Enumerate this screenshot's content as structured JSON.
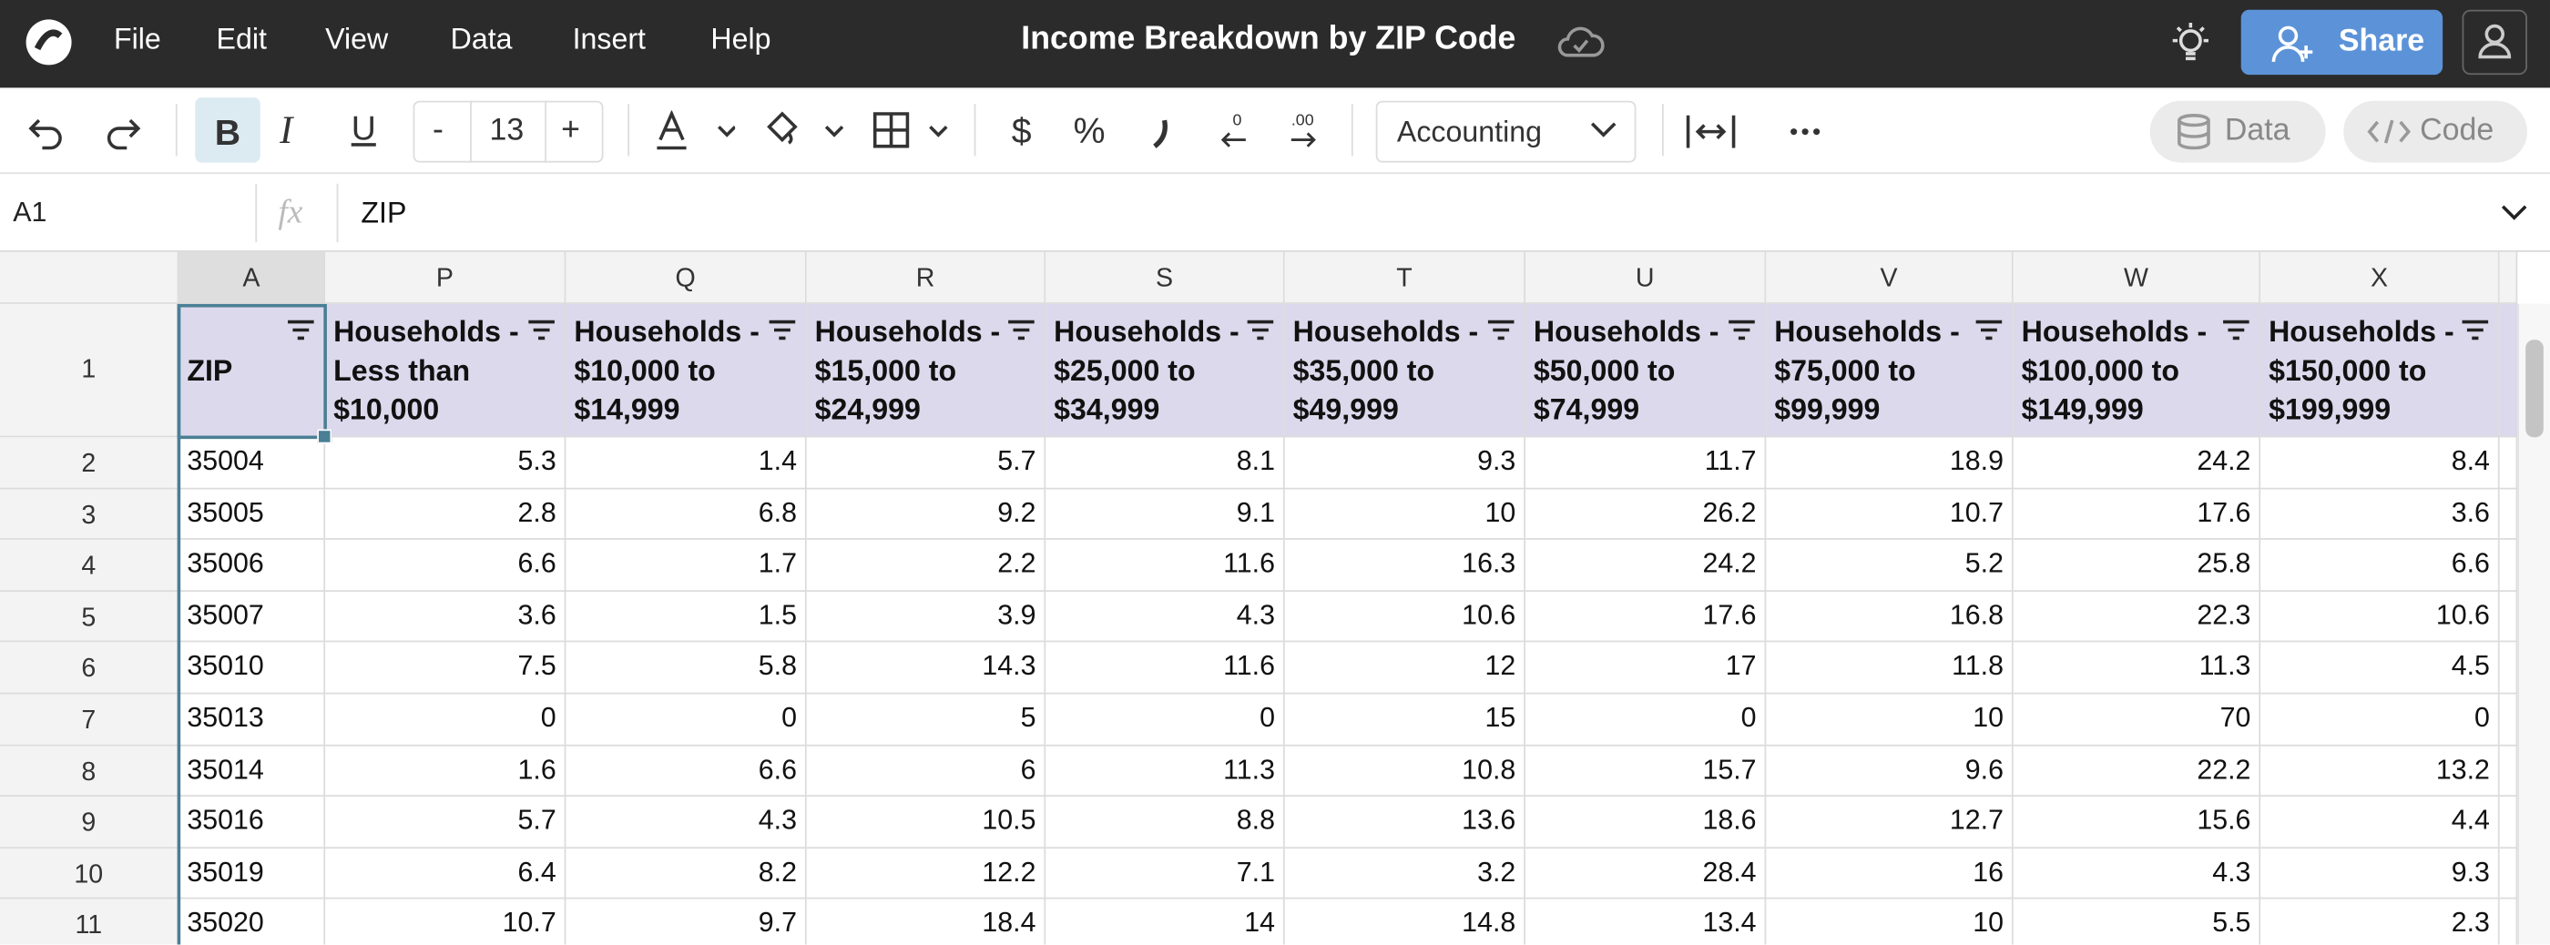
{
  "app": {
    "menu": [
      "File",
      "Edit",
      "View",
      "Data",
      "Insert",
      "Help"
    ],
    "title": "Income Breakdown by ZIP Code",
    "share": "Share"
  },
  "toolbar": {
    "bold": "B",
    "italic": "I",
    "underline": "U",
    "decrease": "-",
    "font_size": "13",
    "increase": "+",
    "currency": "$",
    "percent": "%",
    "number_format": "Accounting",
    "data_button": "Data",
    "code_button": "Code"
  },
  "formula_bar": {
    "cell_ref": "A1",
    "fx": "fx",
    "content": "ZIP"
  },
  "sheet": {
    "columns": [
      "A",
      "P",
      "Q",
      "R",
      "S",
      "T",
      "U",
      "V",
      "W",
      "X"
    ],
    "row_numbers": [
      "1",
      "2",
      "3",
      "4",
      "5",
      "6",
      "7",
      "8",
      "9",
      "10",
      "11"
    ],
    "header": [
      "ZIP",
      "Households - Less than $10,000",
      "Households - $10,000 to $14,999",
      "Households - $15,000 to $24,999",
      "Households - $25,000 to $34,999",
      "Households - $35,000 to $49,999",
      "Households - $50,000 to $74,999",
      "Households - $75,000 to $99,999",
      "Households - $100,000 to $149,999",
      "Households - $150,000 to $199,999"
    ],
    "rows": [
      [
        "35004",
        5.3,
        1.4,
        5.7,
        8.1,
        9.3,
        11.7,
        18.9,
        24.2,
        8.4
      ],
      [
        "35005",
        2.8,
        6.8,
        9.2,
        9.1,
        10,
        26.2,
        10.7,
        17.6,
        3.6
      ],
      [
        "35006",
        6.6,
        1.7,
        2.2,
        11.6,
        16.3,
        24.2,
        5.2,
        25.8,
        6.6
      ],
      [
        "35007",
        3.6,
        1.5,
        3.9,
        4.3,
        10.6,
        17.6,
        16.8,
        22.3,
        10.6
      ],
      [
        "35010",
        7.5,
        5.8,
        14.3,
        11.6,
        12,
        17,
        11.8,
        11.3,
        4.5
      ],
      [
        "35013",
        0,
        0,
        5,
        0,
        15,
        0,
        10,
        70,
        0
      ],
      [
        "35014",
        1.6,
        6.6,
        6,
        11.3,
        10.8,
        15.7,
        9.6,
        22.2,
        13.2
      ],
      [
        "35016",
        5.7,
        4.3,
        10.5,
        8.8,
        13.6,
        18.6,
        12.7,
        15.6,
        4.4
      ],
      [
        "35019",
        6.4,
        8.2,
        12.2,
        7.1,
        3.2,
        28.4,
        16,
        4.3,
        9.3
      ],
      [
        "35020",
        10.7,
        9.7,
        18.4,
        14,
        14.8,
        13.4,
        10,
        5.5,
        2.3
      ]
    ]
  }
}
